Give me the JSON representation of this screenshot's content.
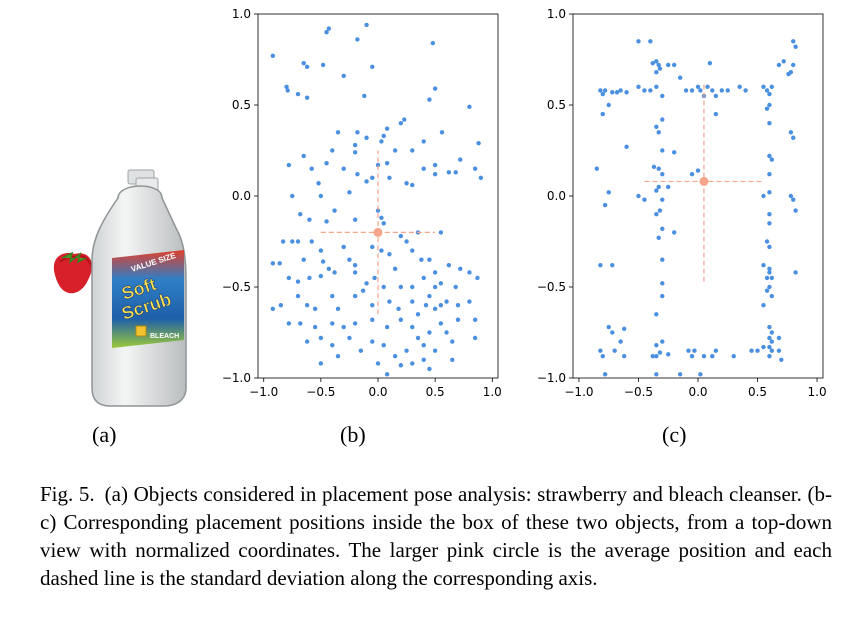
{
  "panels": {
    "a": "(a)",
    "b": "(b)",
    "c": "(c)"
  },
  "objects": {
    "bottle_label_top": "VALUE SIZE",
    "bottle_brand_line1": "Soft",
    "bottle_brand_line2": "Scrub",
    "bottle_label_bottom": "BLEACH"
  },
  "caption": {
    "fig": "Fig. 5.",
    "text": "(a) Objects considered in placement pose analysis: strawberry and bleach cleanser. (b-c) Corresponding placement positions inside the box of these two objects, from a top-down view with normalized coordinates. The larger pink circle is the average position and each dashed line is the standard deviation along the corresponding axis."
  },
  "colors": {
    "points": "#4a8fe0",
    "mean": "#f4a58a",
    "std": "#f4a58a"
  },
  "chart_data": [
    {
      "type": "scatter",
      "id": "b",
      "title": "",
      "xlabel": "",
      "ylabel": "",
      "xlim": [
        -1.05,
        1.05
      ],
      "ylim": [
        -1.0,
        1.0
      ],
      "xticks": [
        "−1.0",
        "−0.5",
        "0.0",
        "0.5",
        "1.0"
      ],
      "yticks": [
        "1.0",
        "0.5",
        "0.0",
        "−0.5",
        "−1.0"
      ],
      "xtick_values": [
        -1.0,
        -0.5,
        0.0,
        0.5,
        1.0
      ],
      "ytick_values": [
        1.0,
        0.5,
        0.0,
        -0.5,
        -1.0
      ],
      "mean": [
        0.0,
        -0.2
      ],
      "std": [
        0.5,
        0.45
      ],
      "points": [
        [
          -0.92,
          0.77
        ],
        [
          -0.45,
          0.9
        ],
        [
          -0.43,
          0.92
        ],
        [
          -0.18,
          0.86
        ],
        [
          -0.1,
          0.94
        ],
        [
          0.48,
          0.84
        ],
        [
          -0.65,
          0.73
        ],
        [
          -0.62,
          0.71
        ],
        [
          -0.48,
          0.72
        ],
        [
          -0.05,
          0.71
        ],
        [
          -0.8,
          0.6
        ],
        [
          -0.3,
          0.66
        ],
        [
          -0.79,
          0.58
        ],
        [
          -0.7,
          0.56
        ],
        [
          -0.62,
          0.54
        ],
        [
          -0.12,
          0.55
        ],
        [
          0.5,
          0.59
        ],
        [
          0.8,
          0.49
        ],
        [
          0.45,
          0.53
        ],
        [
          0.23,
          0.42
        ],
        [
          -0.18,
          0.35
        ],
        [
          0.2,
          0.4
        ],
        [
          0.08,
          0.37
        ],
        [
          -0.35,
          0.35
        ],
        [
          0.05,
          0.33
        ],
        [
          -0.1,
          0.32
        ],
        [
          0.03,
          0.3
        ],
        [
          0.4,
          0.3
        ],
        [
          0.56,
          0.35
        ],
        [
          0.88,
          0.29
        ],
        [
          -0.2,
          0.28
        ],
        [
          -0.4,
          0.25
        ],
        [
          0.15,
          0.25
        ],
        [
          0.72,
          0.2
        ],
        [
          -0.78,
          0.17
        ],
        [
          -0.58,
          0.15
        ],
        [
          -0.65,
          0.22
        ],
        [
          -0.45,
          0.18
        ],
        [
          -0.3,
          0.15
        ],
        [
          -0.18,
          0.12
        ],
        [
          0.0,
          0.17
        ],
        [
          0.08,
          0.18
        ],
        [
          0.3,
          0.25
        ],
        [
          0.4,
          0.15
        ],
        [
          0.5,
          0.12
        ],
        [
          -0.2,
          0.24
        ],
        [
          0.1,
          0.1
        ],
        [
          0.25,
          0.07
        ],
        [
          0.3,
          0.06
        ],
        [
          0.5,
          0.17
        ],
        [
          0.62,
          0.13
        ],
        [
          0.68,
          0.13
        ],
        [
          0.85,
          0.15
        ],
        [
          0.9,
          0.1
        ],
        [
          -0.05,
          0.1
        ],
        [
          -0.1,
          0.08
        ],
        [
          -0.52,
          0.07
        ],
        [
          -0.75,
          0.0
        ],
        [
          -0.5,
          -0.0
        ],
        [
          -0.25,
          0.02
        ],
        [
          -0.38,
          -0.08
        ],
        [
          0.0,
          -0.08
        ],
        [
          0.03,
          -0.12
        ],
        [
          0.05,
          -0.15
        ],
        [
          -0.68,
          -0.1
        ],
        [
          -0.6,
          -0.13
        ],
        [
          -0.45,
          -0.14
        ],
        [
          -0.2,
          -0.13
        ],
        [
          0.0,
          -0.2
        ],
        [
          0.2,
          -0.22
        ],
        [
          0.25,
          -0.25
        ],
        [
          0.35,
          -0.2
        ],
        [
          0.55,
          -0.2
        ],
        [
          -0.83,
          -0.25
        ],
        [
          -0.75,
          -0.25
        ],
        [
          -0.7,
          -0.25
        ],
        [
          -0.58,
          -0.25
        ],
        [
          -0.65,
          -0.35
        ],
        [
          -0.5,
          -0.3
        ],
        [
          -0.48,
          -0.36
        ],
        [
          -0.3,
          -0.28
        ],
        [
          -0.25,
          -0.35
        ],
        [
          -0.2,
          -0.38
        ],
        [
          -0.05,
          -0.28
        ],
        [
          0.03,
          -0.3
        ],
        [
          0.1,
          -0.32
        ],
        [
          0.15,
          -0.4
        ],
        [
          0.3,
          -0.3
        ],
        [
          0.38,
          -0.35
        ],
        [
          0.45,
          -0.35
        ],
        [
          0.5,
          -0.42
        ],
        [
          0.62,
          -0.38
        ],
        [
          0.72,
          -0.4
        ],
        [
          0.8,
          -0.42
        ],
        [
          0.87,
          -0.45
        ],
        [
          -0.92,
          -0.37
        ],
        [
          -0.86,
          -0.37
        ],
        [
          -0.78,
          -0.45
        ],
        [
          -0.7,
          -0.47
        ],
        [
          -0.6,
          -0.45
        ],
        [
          -0.5,
          -0.44
        ],
        [
          -0.43,
          -0.4
        ],
        [
          -0.38,
          -0.42
        ],
        [
          -0.2,
          -0.42
        ],
        [
          -0.1,
          -0.48
        ],
        [
          -0.03,
          -0.45
        ],
        [
          0.05,
          -0.5
        ],
        [
          0.2,
          -0.5
        ],
        [
          0.3,
          -0.5
        ],
        [
          0.4,
          -0.45
        ],
        [
          0.5,
          -0.5
        ],
        [
          0.55,
          -0.48
        ],
        [
          0.68,
          -0.5
        ],
        [
          -0.85,
          -0.6
        ],
        [
          -0.7,
          -0.55
        ],
        [
          -0.62,
          -0.6
        ],
        [
          -0.55,
          -0.62
        ],
        [
          -0.4,
          -0.55
        ],
        [
          -0.35,
          -0.62
        ],
        [
          -0.2,
          -0.55
        ],
        [
          -0.13,
          -0.52
        ],
        [
          -0.05,
          -0.6
        ],
        [
          0.1,
          -0.58
        ],
        [
          0.18,
          -0.62
        ],
        [
          0.3,
          -0.58
        ],
        [
          0.35,
          -0.65
        ],
        [
          0.42,
          -0.6
        ],
        [
          0.45,
          -0.55
        ],
        [
          0.5,
          -0.62
        ],
        [
          0.55,
          -0.6
        ],
        [
          0.6,
          -0.58
        ],
        [
          0.7,
          -0.6
        ],
        [
          0.8,
          -0.58
        ],
        [
          -0.92,
          -0.62
        ],
        [
          -0.78,
          -0.7
        ],
        [
          -0.68,
          -0.7
        ],
        [
          -0.55,
          -0.72
        ],
        [
          -0.4,
          -0.7
        ],
        [
          -0.3,
          -0.72
        ],
        [
          -0.2,
          -0.7
        ],
        [
          -0.05,
          -0.68
        ],
        [
          0.08,
          -0.72
        ],
        [
          0.2,
          -0.68
        ],
        [
          0.3,
          -0.72
        ],
        [
          0.35,
          -0.78
        ],
        [
          0.45,
          -0.75
        ],
        [
          0.55,
          -0.7
        ],
        [
          0.6,
          -0.75
        ],
        [
          0.7,
          -0.68
        ],
        [
          0.85,
          -0.68
        ],
        [
          -0.62,
          -0.8
        ],
        [
          -0.5,
          -0.78
        ],
        [
          -0.4,
          -0.82
        ],
        [
          -0.25,
          -0.78
        ],
        [
          -0.15,
          -0.85
        ],
        [
          -0.05,
          -0.8
        ],
        [
          0.05,
          -0.82
        ],
        [
          0.15,
          -0.88
        ],
        [
          0.25,
          -0.85
        ],
        [
          0.4,
          -0.82
        ],
        [
          0.5,
          -0.85
        ],
        [
          0.65,
          -0.8
        ],
        [
          0.85,
          -0.78
        ],
        [
          -0.5,
          -0.92
        ],
        [
          -0.35,
          -0.88
        ],
        [
          0.0,
          -0.92
        ],
        [
          0.3,
          -0.92
        ],
        [
          0.65,
          -0.9
        ],
        [
          0.08,
          -0.98
        ],
        [
          0.2,
          -0.93
        ],
        [
          0.45,
          -0.95
        ],
        [
          0.4,
          -0.9
        ]
      ]
    },
    {
      "type": "scatter",
      "id": "c",
      "title": "",
      "xlabel": "",
      "ylabel": "",
      "xlim": [
        -1.05,
        1.05
      ],
      "ylim": [
        -1.0,
        1.0
      ],
      "xticks": [
        "−1.0",
        "−0.5",
        "0.0",
        "0.5",
        "1.0"
      ],
      "yticks": [
        "1.0",
        "0.5",
        "0.0",
        "−0.5",
        "−1.0"
      ],
      "xtick_values": [
        -1.0,
        -0.5,
        0.0,
        0.5,
        1.0
      ],
      "ytick_values": [
        1.0,
        0.5,
        0.0,
        -0.5,
        -1.0
      ],
      "mean": [
        0.05,
        0.08
      ],
      "std": [
        0.5,
        0.55
      ],
      "points": [
        [
          -0.4,
          0.85
        ],
        [
          -0.5,
          0.85
        ],
        [
          -0.35,
          0.74
        ],
        [
          -0.33,
          0.72
        ],
        [
          -0.38,
          0.73
        ],
        [
          -0.32,
          0.7
        ],
        [
          -0.25,
          0.72
        ],
        [
          -0.2,
          0.72
        ],
        [
          0.1,
          0.73
        ],
        [
          0.68,
          0.72
        ],
        [
          0.72,
          0.74
        ],
        [
          0.8,
          0.85
        ],
        [
          0.82,
          0.82
        ],
        [
          0.8,
          0.72
        ],
        [
          0.78,
          0.68
        ],
        [
          0.76,
          0.67
        ],
        [
          -0.35,
          0.68
        ],
        [
          -0.15,
          0.65
        ],
        [
          -0.82,
          0.58
        ],
        [
          -0.8,
          0.56
        ],
        [
          -0.78,
          0.58
        ],
        [
          -0.72,
          0.57
        ],
        [
          -0.68,
          0.57
        ],
        [
          -0.65,
          0.58
        ],
        [
          -0.6,
          0.57
        ],
        [
          -0.5,
          0.6
        ],
        [
          -0.45,
          0.58
        ],
        [
          -0.4,
          0.58
        ],
        [
          -0.35,
          0.6
        ],
        [
          -0.3,
          0.55
        ],
        [
          -0.1,
          0.58
        ],
        [
          -0.05,
          0.58
        ],
        [
          0.0,
          0.6
        ],
        [
          0.02,
          0.58
        ],
        [
          0.05,
          0.55
        ],
        [
          0.08,
          0.6
        ],
        [
          0.12,
          0.58
        ],
        [
          0.15,
          0.55
        ],
        [
          0.2,
          0.58
        ],
        [
          0.25,
          0.58
        ],
        [
          0.35,
          0.6
        ],
        [
          0.4,
          0.58
        ],
        [
          0.55,
          0.6
        ],
        [
          0.58,
          0.58
        ],
        [
          0.6,
          0.56
        ],
        [
          0.62,
          0.6
        ],
        [
          0.6,
          0.5
        ],
        [
          0.58,
          0.48
        ],
        [
          -0.75,
          0.5
        ],
        [
          -0.8,
          0.45
        ],
        [
          -0.3,
          0.42
        ],
        [
          -0.35,
          0.38
        ],
        [
          -0.33,
          0.35
        ],
        [
          0.15,
          0.45
        ],
        [
          0.6,
          0.4
        ],
        [
          0.78,
          0.35
        ],
        [
          0.8,
          0.32
        ],
        [
          -0.6,
          0.27
        ],
        [
          -0.3,
          0.25
        ],
        [
          -0.2,
          0.24
        ],
        [
          0.6,
          0.22
        ],
        [
          0.62,
          0.2
        ],
        [
          -0.85,
          0.15
        ],
        [
          -0.33,
          0.15
        ],
        [
          -0.37,
          0.16
        ],
        [
          -0.3,
          0.12
        ],
        [
          -0.05,
          0.12
        ],
        [
          0.0,
          0.14
        ],
        [
          0.6,
          0.12
        ],
        [
          -0.25,
          0.05
        ],
        [
          -0.75,
          0.02
        ],
        [
          -0.35,
          0.03
        ],
        [
          -0.33,
          0.05
        ],
        [
          -0.5,
          0.0
        ],
        [
          -0.45,
          -0.02
        ],
        [
          -0.3,
          -0.02
        ],
        [
          0.55,
          0.0
        ],
        [
          0.6,
          0.02
        ],
        [
          0.78,
          0.0
        ],
        [
          0.8,
          -0.02
        ],
        [
          -0.78,
          -0.05
        ],
        [
          -0.32,
          -0.08
        ],
        [
          -0.35,
          -0.1
        ],
        [
          0.82,
          -0.08
        ],
        [
          0.6,
          -0.1
        ],
        [
          -0.2,
          -0.2
        ],
        [
          0.6,
          -0.15
        ],
        [
          -0.3,
          -0.18
        ],
        [
          -0.33,
          -0.23
        ],
        [
          0.58,
          -0.25
        ],
        [
          0.6,
          -0.28
        ],
        [
          -0.82,
          -0.38
        ],
        [
          -0.72,
          -0.38
        ],
        [
          -0.3,
          -0.35
        ],
        [
          0.55,
          -0.38
        ],
        [
          0.6,
          -0.4
        ],
        [
          0.6,
          -0.42
        ],
        [
          0.58,
          -0.45
        ],
        [
          0.62,
          -0.45
        ],
        [
          0.82,
          -0.42
        ],
        [
          -0.3,
          -0.48
        ],
        [
          0.6,
          -0.5
        ],
        [
          0.58,
          -0.52
        ],
        [
          0.62,
          -0.55
        ],
        [
          -0.3,
          -0.55
        ],
        [
          0.55,
          -0.6
        ],
        [
          -0.35,
          -0.65
        ],
        [
          -0.75,
          -0.72
        ],
        [
          -0.72,
          -0.75
        ],
        [
          -0.62,
          -0.73
        ],
        [
          0.6,
          -0.72
        ],
        [
          0.62,
          -0.75
        ],
        [
          -0.65,
          -0.8
        ],
        [
          -0.3,
          -0.8
        ],
        [
          -0.35,
          -0.82
        ],
        [
          0.6,
          -0.78
        ],
        [
          0.62,
          -0.8
        ],
        [
          0.68,
          -0.78
        ],
        [
          -0.82,
          -0.85
        ],
        [
          -0.8,
          -0.88
        ],
        [
          -0.7,
          -0.85
        ],
        [
          -0.62,
          -0.88
        ],
        [
          -0.38,
          -0.88
        ],
        [
          -0.35,
          -0.88
        ],
        [
          -0.32,
          -0.86
        ],
        [
          -0.25,
          -0.87
        ],
        [
          -0.08,
          -0.85
        ],
        [
          -0.05,
          -0.88
        ],
        [
          -0.03,
          -0.85
        ],
        [
          0.05,
          -0.88
        ],
        [
          0.12,
          -0.88
        ],
        [
          0.15,
          -0.85
        ],
        [
          0.45,
          -0.85
        ],
        [
          0.5,
          -0.85
        ],
        [
          0.55,
          -0.83
        ],
        [
          0.6,
          -0.83
        ],
        [
          0.62,
          -0.85
        ],
        [
          0.6,
          -0.88
        ],
        [
          0.68,
          -0.85
        ],
        [
          0.7,
          -0.9
        ],
        [
          -0.78,
          -0.98
        ],
        [
          -0.35,
          -0.98
        ],
        [
          -0.15,
          -0.98
        ],
        [
          0.02,
          -0.98
        ],
        [
          0.3,
          -0.88
        ]
      ]
    }
  ]
}
